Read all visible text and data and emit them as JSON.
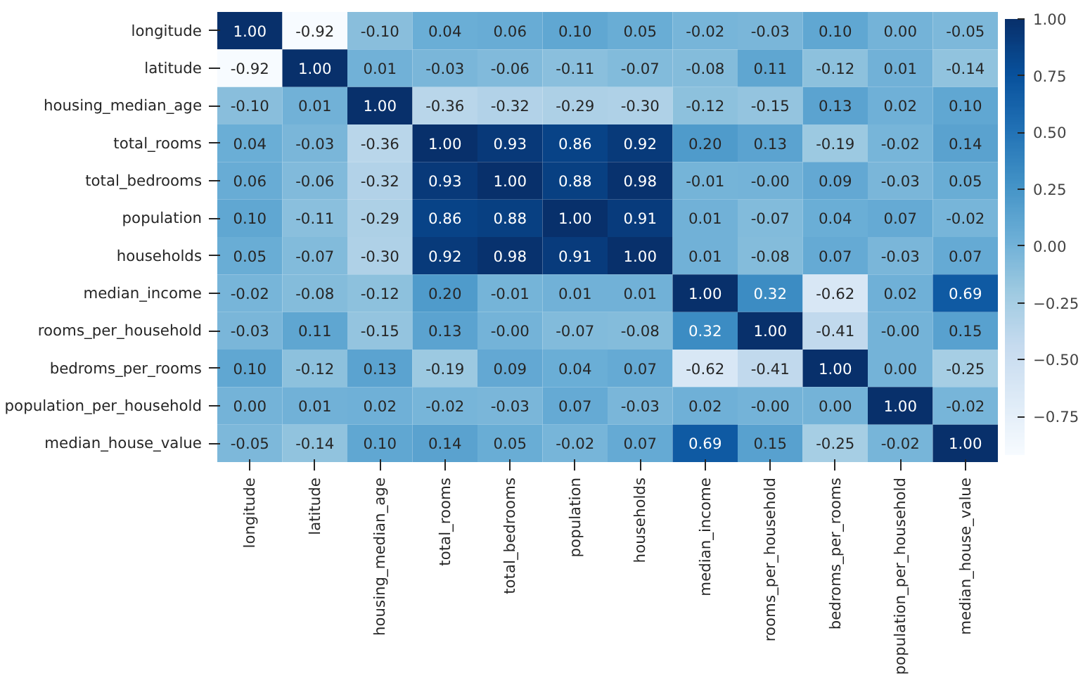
{
  "chart_data": {
    "type": "heatmap",
    "categories": [
      "longitude",
      "latitude",
      "housing_median_age",
      "total_rooms",
      "total_bedrooms",
      "population",
      "households",
      "median_income",
      "rooms_per_household",
      "bedroms_per_rooms",
      "population_per_household",
      "median_house_value"
    ],
    "y_categories": [
      "longitude",
      "latitude",
      "housing_median_age",
      "total_rooms",
      "total_bedrooms",
      "population",
      "households",
      "median_income",
      "rooms_per_household",
      "bedroms_per_rooms",
      "population_per_household",
      "median_house_value"
    ],
    "cells": [
      [
        1.0,
        -0.92,
        -0.1,
        0.04,
        0.06,
        0.1,
        0.05,
        -0.02,
        -0.03,
        0.1,
        0.0,
        -0.05
      ],
      [
        -0.92,
        1.0,
        0.01,
        -0.03,
        -0.06,
        -0.11,
        -0.07,
        -0.08,
        0.11,
        -0.12,
        0.01,
        -0.14
      ],
      [
        -0.1,
        0.01,
        1.0,
        -0.36,
        -0.32,
        -0.29,
        -0.3,
        -0.12,
        -0.15,
        0.13,
        0.02,
        0.1
      ],
      [
        0.04,
        -0.03,
        -0.36,
        1.0,
        0.93,
        0.86,
        0.92,
        0.2,
        0.13,
        -0.19,
        -0.02,
        0.14
      ],
      [
        0.06,
        -0.06,
        -0.32,
        0.93,
        1.0,
        0.88,
        0.98,
        -0.01,
        -0.0,
        0.09,
        -0.03,
        0.05
      ],
      [
        0.1,
        -0.11,
        -0.29,
        0.86,
        0.88,
        1.0,
        0.91,
        0.01,
        -0.07,
        0.04,
        0.07,
        -0.02
      ],
      [
        0.05,
        -0.07,
        -0.3,
        0.92,
        0.98,
        0.91,
        1.0,
        0.01,
        -0.08,
        0.07,
        -0.03,
        0.07
      ],
      [
        -0.02,
        -0.08,
        -0.12,
        0.2,
        -0.01,
        0.01,
        0.01,
        1.0,
        0.32,
        -0.62,
        0.02,
        0.69
      ],
      [
        -0.03,
        0.11,
        -0.15,
        0.13,
        -0.0,
        -0.07,
        -0.08,
        0.32,
        1.0,
        -0.41,
        -0.0,
        0.15
      ],
      [
        0.1,
        -0.12,
        0.13,
        -0.19,
        0.09,
        0.04,
        0.07,
        -0.62,
        -0.41,
        1.0,
        0.0,
        -0.25
      ],
      [
        0.0,
        0.01,
        0.02,
        -0.02,
        -0.03,
        0.07,
        -0.03,
        0.02,
        -0.0,
        0.0,
        1.0,
        -0.02
      ],
      [
        -0.05,
        -0.14,
        0.1,
        0.14,
        0.05,
        -0.02,
        0.07,
        0.69,
        0.15,
        -0.25,
        -0.02,
        1.0
      ]
    ],
    "cell_labels": [
      [
        "1.00",
        "-0.92",
        "-0.10",
        "0.04",
        "0.06",
        "0.10",
        "0.05",
        "-0.02",
        "-0.03",
        "0.10",
        "0.00",
        "-0.05"
      ],
      [
        "-0.92",
        "1.00",
        "0.01",
        "-0.03",
        "-0.06",
        "-0.11",
        "-0.07",
        "-0.08",
        "0.11",
        "-0.12",
        "0.01",
        "-0.14"
      ],
      [
        "-0.10",
        "0.01",
        "1.00",
        "-0.36",
        "-0.32",
        "-0.29",
        "-0.30",
        "-0.12",
        "-0.15",
        "0.13",
        "0.02",
        "0.10"
      ],
      [
        "0.04",
        "-0.03",
        "-0.36",
        "1.00",
        "0.93",
        "0.86",
        "0.92",
        "0.20",
        "0.13",
        "-0.19",
        "-0.02",
        "0.14"
      ],
      [
        "0.06",
        "-0.06",
        "-0.32",
        "0.93",
        "1.00",
        "0.88",
        "0.98",
        "-0.01",
        "-0.00",
        "0.09",
        "-0.03",
        "0.05"
      ],
      [
        "0.10",
        "-0.11",
        "-0.29",
        "0.86",
        "0.88",
        "1.00",
        "0.91",
        "0.01",
        "-0.07",
        "0.04",
        "0.07",
        "-0.02"
      ],
      [
        "0.05",
        "-0.07",
        "-0.30",
        "0.92",
        "0.98",
        "0.91",
        "1.00",
        "0.01",
        "-0.08",
        "0.07",
        "-0.03",
        "0.07"
      ],
      [
        "-0.02",
        "-0.08",
        "-0.12",
        "0.20",
        "-0.01",
        "0.01",
        "0.01",
        "1.00",
        "0.32",
        "-0.62",
        "0.02",
        "0.69"
      ],
      [
        "-0.03",
        "0.11",
        "-0.15",
        "0.13",
        "-0.00",
        "-0.07",
        "-0.08",
        "0.32",
        "1.00",
        "-0.41",
        "-0.00",
        "0.15"
      ],
      [
        "0.10",
        "-0.12",
        "0.13",
        "-0.19",
        "0.09",
        "0.04",
        "0.07",
        "-0.62",
        "-0.41",
        "1.00",
        "0.00",
        "-0.25"
      ],
      [
        "0.00",
        "0.01",
        "0.02",
        "-0.02",
        "-0.03",
        "0.07",
        "-0.03",
        "0.02",
        "-0.00",
        "0.00",
        "1.00",
        "-0.02"
      ],
      [
        "-0.05",
        "-0.14",
        "0.10",
        "0.14",
        "0.05",
        "-0.02",
        "0.07",
        "0.69",
        "0.15",
        "-0.25",
        "-0.02",
        "1.00"
      ]
    ],
    "clim": [
      -0.92,
      1.0
    ],
    "cticks": [
      {
        "value": -0.75,
        "label": "−0.75"
      },
      {
        "value": -0.5,
        "label": "−0.50"
      },
      {
        "value": -0.25,
        "label": "−0.25"
      },
      {
        "value": 0,
        "label": "0.00"
      },
      {
        "value": 0.25,
        "label": "0.25"
      },
      {
        "value": 0.5,
        "label": "0.50"
      },
      {
        "value": 0.75,
        "label": "0.75"
      },
      {
        "value": 1,
        "label": "1.00"
      }
    ]
  }
}
